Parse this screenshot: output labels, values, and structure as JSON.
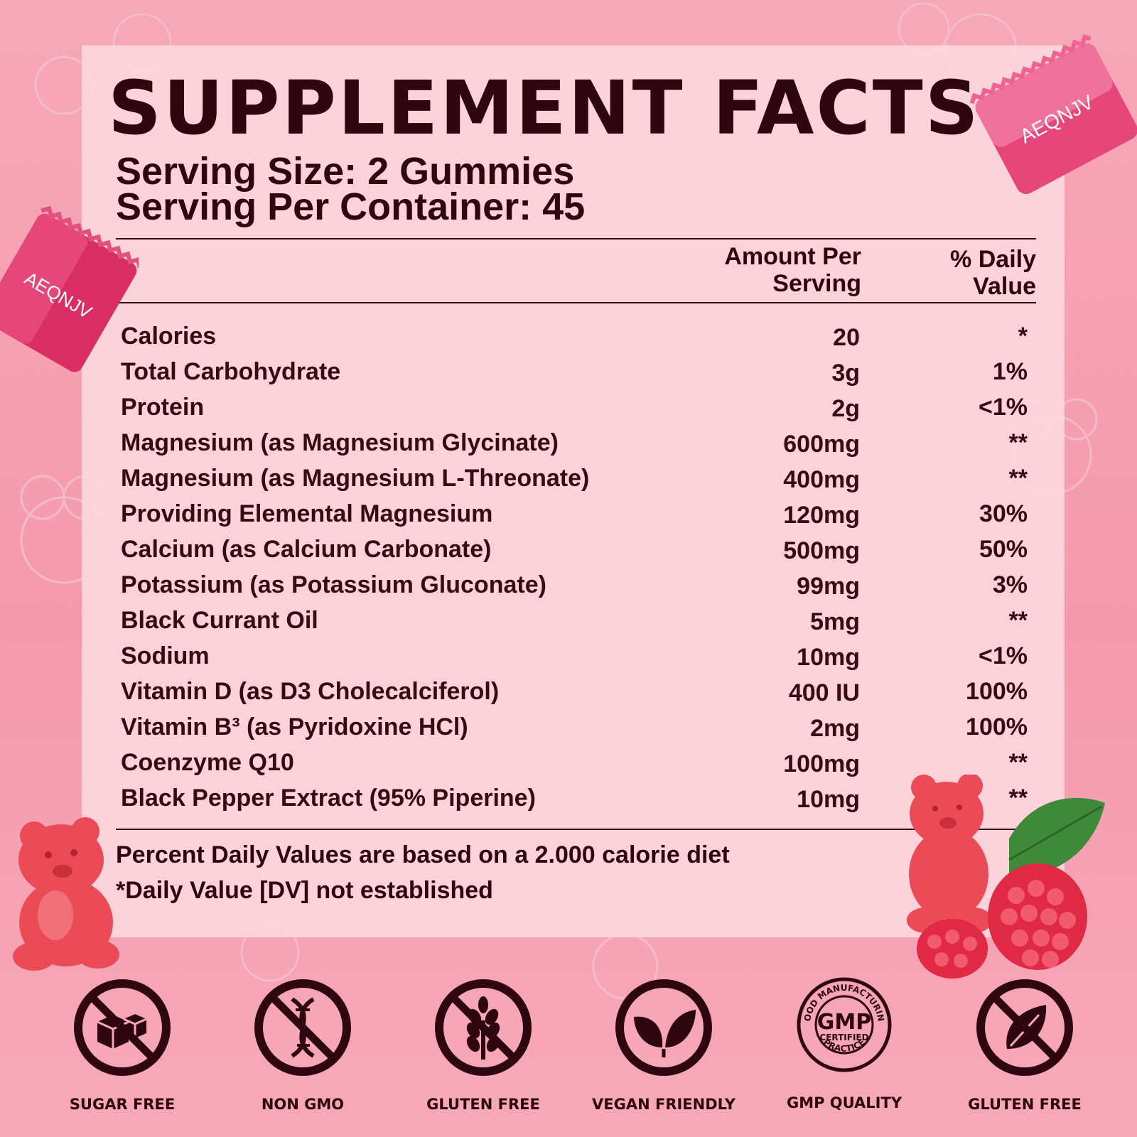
{
  "title": "SUPPLEMENT FACTS",
  "serving_size": "Serving Size: 2 Gummies",
  "servings_per_container": "Serving Per Container: 45",
  "columns": {
    "amount": [
      "Amount Per",
      "Serving"
    ],
    "daily_value": [
      "% Daily",
      "Value"
    ]
  },
  "rows": [
    {
      "name": "Calories",
      "amount": "20",
      "dv": "*"
    },
    {
      "name": "Total Carbohydrate",
      "amount": "3g",
      "dv": "1%"
    },
    {
      "name": "Protein",
      "amount": "2g",
      "dv": "<1%"
    },
    {
      "name": "Magnesium (as Magnesium Glycinate)",
      "amount": "600mg",
      "dv": "**"
    },
    {
      "name": "Magnesium (as Magnesium L-Threonate)",
      "amount": "400mg",
      "dv": "**"
    },
    {
      "name": "Providing Elemental Magnesium",
      "amount": "120mg",
      "dv": "30%"
    },
    {
      "name": "Calcium (as Calcium Carbonate)",
      "amount": "500mg",
      "dv": "50%"
    },
    {
      "name": "Potassium (as Potassium Gluconate)",
      "amount": "99mg",
      "dv": "3%"
    },
    {
      "name": "Black Currant Oil",
      "amount": "5mg",
      "dv": "**"
    },
    {
      "name": "Sodium",
      "amount": "10mg",
      "dv": "<1%"
    },
    {
      "name": "Vitamin D (as D3 Cholecalciferol)",
      "amount": "400 IU",
      "dv": "100%"
    },
    {
      "name": "Vitamin B³ (as Pyridoxine HCl)",
      "amount": "2mg",
      "dv": "100%"
    },
    {
      "name": "Coenzyme Q10",
      "amount": "100mg",
      "dv": "**"
    },
    {
      "name": "Black Pepper Extract (95% Piperine)",
      "amount": "10mg",
      "dv": "**"
    }
  ],
  "footnotes": [
    "Percent Daily Values are based on a 2.000 calorie diet",
    "*Daily Value [DV] not established"
  ],
  "brand": "AEQNJV",
  "gmp_seal": {
    "top": "GOOD MANUFACTURING",
    "bottom": "PRACTICE",
    "center": "GMP",
    "sub": "CERTIFIED"
  },
  "badges": [
    {
      "icon": "no-sugar-cubes-icon",
      "label": "SUGAR FREE"
    },
    {
      "icon": "no-dna-icon",
      "label": "NON GMO"
    },
    {
      "icon": "no-wheat-icon",
      "label": "GLUTEN FREE"
    },
    {
      "icon": "leaf-icon",
      "label": "VEGAN FRIENDLY"
    },
    {
      "icon": "gmp-seal-icon",
      "label": "GMP QUALITY"
    },
    {
      "icon": "no-leaf-icon",
      "label": "GLUTEN FREE"
    }
  ],
  "colors": {
    "dark": "#2e0710",
    "background": "#f6a8b8",
    "panel": "#fcd6de",
    "gummy": "#e8434f",
    "wrapper": "#e0336a"
  }
}
